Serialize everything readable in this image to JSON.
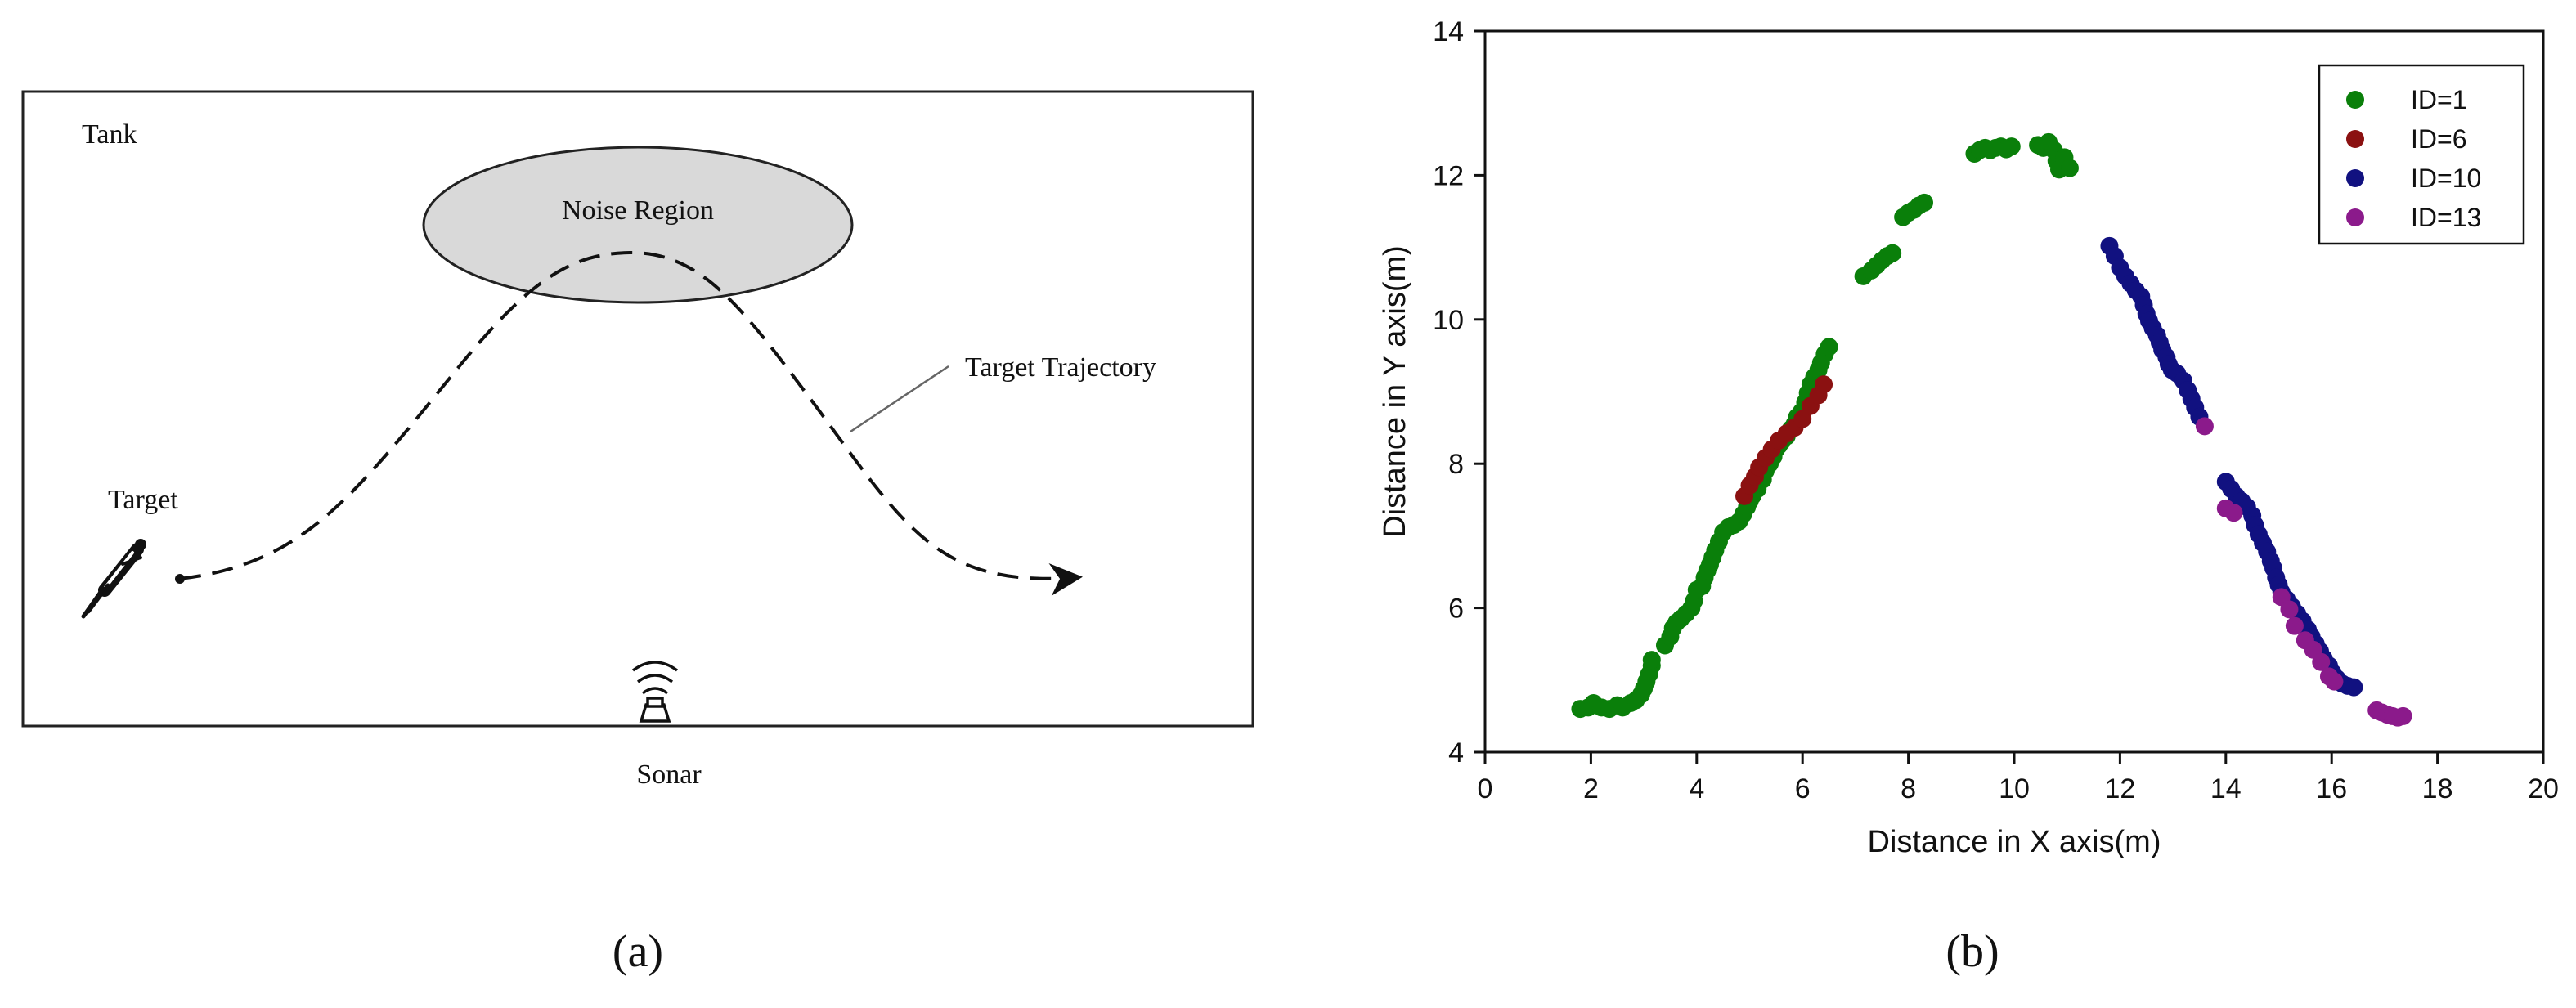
{
  "panel_a": {
    "tank_label": "Tank",
    "noise_region_label": "Noise Region",
    "trajectory_label": "Target Trajectory",
    "target_label": "Target",
    "sonar_label": "Sonar",
    "caption": "(a)"
  },
  "panel_b": {
    "caption": "(b)"
  },
  "chart_data": {
    "type": "scatter",
    "title": "",
    "xlabel": "Distance in X axis(m)",
    "ylabel": "Distance in Y axis(m)",
    "xlim": [
      0,
      20
    ],
    "ylim": [
      4,
      14
    ],
    "xticks": [
      0,
      2,
      4,
      6,
      8,
      10,
      12,
      14,
      16,
      18,
      20
    ],
    "yticks": [
      4,
      6,
      8,
      10,
      12,
      14
    ],
    "grid": false,
    "legend_position": "top-right",
    "series": [
      {
        "name": "ID=1",
        "color": "#0a7f0a",
        "points": [
          [
            1.8,
            4.6
          ],
          [
            1.95,
            4.62
          ],
          [
            2.05,
            4.68
          ],
          [
            2.2,
            4.62
          ],
          [
            2.35,
            4.6
          ],
          [
            2.5,
            4.65
          ],
          [
            2.6,
            4.62
          ],
          [
            2.75,
            4.68
          ],
          [
            2.85,
            4.72
          ],
          [
            2.95,
            4.8
          ],
          [
            3.0,
            4.88
          ],
          [
            3.05,
            4.98
          ],
          [
            3.1,
            5.08
          ],
          [
            3.15,
            5.2
          ],
          [
            3.15,
            5.28
          ],
          [
            3.4,
            5.48
          ],
          [
            3.5,
            5.6
          ],
          [
            3.55,
            5.72
          ],
          [
            3.62,
            5.8
          ],
          [
            3.7,
            5.85
          ],
          [
            3.8,
            5.92
          ],
          [
            3.9,
            6.0
          ],
          [
            3.95,
            6.1
          ],
          [
            4.0,
            6.25
          ],
          [
            4.1,
            6.3
          ],
          [
            4.15,
            6.42
          ],
          [
            4.2,
            6.52
          ],
          [
            4.25,
            6.6
          ],
          [
            4.3,
            6.7
          ],
          [
            4.35,
            6.8
          ],
          [
            4.42,
            6.92
          ],
          [
            4.5,
            7.05
          ],
          [
            4.6,
            7.12
          ],
          [
            4.7,
            7.15
          ],
          [
            4.8,
            7.2
          ],
          [
            4.88,
            7.3
          ],
          [
            4.95,
            7.4
          ],
          [
            5.0,
            7.48
          ],
          [
            5.05,
            7.55
          ],
          [
            5.15,
            7.65
          ],
          [
            5.25,
            7.78
          ],
          [
            5.3,
            7.9
          ],
          [
            5.38,
            8.0
          ],
          [
            5.45,
            8.1
          ],
          [
            5.5,
            8.2
          ],
          [
            5.55,
            8.25
          ],
          [
            5.6,
            8.3
          ],
          [
            5.7,
            8.38
          ],
          [
            5.78,
            8.48
          ],
          [
            5.85,
            8.55
          ],
          [
            5.9,
            8.65
          ],
          [
            5.98,
            8.72
          ],
          [
            6.05,
            8.85
          ],
          [
            6.1,
            8.98
          ],
          [
            6.15,
            9.1
          ],
          [
            6.22,
            9.2
          ],
          [
            6.3,
            9.3
          ],
          [
            6.35,
            9.4
          ],
          [
            6.42,
            9.52
          ],
          [
            6.5,
            9.62
          ],
          [
            7.15,
            10.6
          ],
          [
            7.3,
            10.68
          ],
          [
            7.4,
            10.75
          ],
          [
            7.5,
            10.82
          ],
          [
            7.6,
            10.88
          ],
          [
            7.7,
            10.92
          ],
          [
            7.9,
            11.42
          ],
          [
            8.0,
            11.48
          ],
          [
            8.1,
            11.52
          ],
          [
            8.2,
            11.58
          ],
          [
            8.3,
            11.62
          ],
          [
            9.25,
            12.3
          ],
          [
            9.35,
            12.35
          ],
          [
            9.45,
            12.38
          ],
          [
            9.55,
            12.35
          ],
          [
            9.65,
            12.38
          ],
          [
            9.75,
            12.4
          ],
          [
            9.85,
            12.36
          ],
          [
            9.95,
            12.4
          ],
          [
            10.45,
            12.42
          ],
          [
            10.55,
            12.38
          ],
          [
            10.65,
            12.46
          ],
          [
            10.75,
            12.35
          ],
          [
            10.8,
            12.2
          ],
          [
            10.85,
            12.08
          ],
          [
            10.95,
            12.25
          ],
          [
            11.05,
            12.1
          ]
        ]
      },
      {
        "name": "ID=6",
        "color": "#8b1111",
        "points": [
          [
            4.9,
            7.55
          ],
          [
            5.0,
            7.7
          ],
          [
            5.1,
            7.82
          ],
          [
            5.18,
            7.95
          ],
          [
            5.3,
            8.08
          ],
          [
            5.42,
            8.2
          ],
          [
            5.55,
            8.32
          ],
          [
            5.7,
            8.42
          ],
          [
            5.85,
            8.5
          ],
          [
            6.0,
            8.62
          ],
          [
            6.15,
            8.8
          ],
          [
            6.3,
            8.95
          ],
          [
            6.4,
            9.1
          ]
        ]
      },
      {
        "name": "ID=10",
        "color": "#111180",
        "points": [
          [
            11.8,
            11.02
          ],
          [
            11.9,
            10.88
          ],
          [
            12.0,
            10.72
          ],
          [
            12.1,
            10.6
          ],
          [
            12.2,
            10.5
          ],
          [
            12.3,
            10.4
          ],
          [
            12.4,
            10.32
          ],
          [
            12.45,
            10.2
          ],
          [
            12.5,
            10.08
          ],
          [
            12.55,
            9.98
          ],
          [
            12.62,
            9.88
          ],
          [
            12.7,
            9.78
          ],
          [
            12.75,
            9.68
          ],
          [
            12.8,
            9.58
          ],
          [
            12.88,
            9.48
          ],
          [
            12.92,
            9.38
          ],
          [
            12.98,
            9.3
          ],
          [
            13.08,
            9.25
          ],
          [
            13.2,
            9.15
          ],
          [
            13.28,
            9.02
          ],
          [
            13.35,
            8.9
          ],
          [
            13.42,
            8.78
          ],
          [
            13.5,
            8.65
          ],
          [
            14.0,
            7.75
          ],
          [
            14.1,
            7.65
          ],
          [
            14.2,
            7.55
          ],
          [
            14.3,
            7.48
          ],
          [
            14.4,
            7.4
          ],
          [
            14.5,
            7.28
          ],
          [
            14.55,
            7.15
          ],
          [
            14.62,
            7.02
          ],
          [
            14.7,
            6.9
          ],
          [
            14.78,
            6.78
          ],
          [
            14.85,
            6.65
          ],
          [
            14.9,
            6.55
          ],
          [
            14.95,
            6.42
          ],
          [
            15.0,
            6.32
          ],
          [
            15.05,
            6.22
          ],
          [
            15.15,
            6.12
          ],
          [
            15.25,
            6.02
          ],
          [
            15.35,
            5.92
          ],
          [
            15.45,
            5.82
          ],
          [
            15.55,
            5.7
          ],
          [
            15.62,
            5.6
          ],
          [
            15.7,
            5.5
          ],
          [
            15.78,
            5.4
          ],
          [
            15.85,
            5.3
          ],
          [
            15.95,
            5.2
          ],
          [
            16.02,
            5.1
          ],
          [
            16.1,
            5.02
          ],
          [
            16.2,
            4.95
          ],
          [
            16.3,
            4.92
          ],
          [
            16.42,
            4.9
          ]
        ]
      },
      {
        "name": "ID=13",
        "color": "#8b1a8b",
        "points": [
          [
            13.6,
            8.52
          ],
          [
            14.0,
            7.38
          ],
          [
            14.15,
            7.32
          ],
          [
            15.05,
            6.15
          ],
          [
            15.2,
            5.98
          ],
          [
            15.3,
            5.75
          ],
          [
            15.5,
            5.55
          ],
          [
            15.65,
            5.42
          ],
          [
            15.8,
            5.25
          ],
          [
            15.95,
            5.05
          ],
          [
            16.05,
            4.98
          ],
          [
            16.85,
            4.58
          ],
          [
            16.95,
            4.55
          ],
          [
            17.05,
            4.52
          ],
          [
            17.15,
            4.5
          ],
          [
            17.25,
            4.48
          ],
          [
            17.35,
            4.5
          ]
        ]
      }
    ]
  }
}
